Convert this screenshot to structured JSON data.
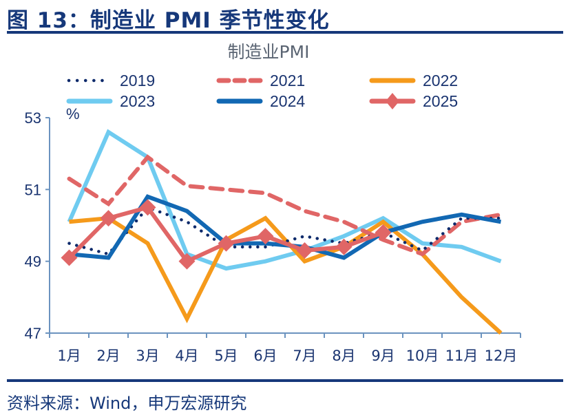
{
  "figure": {
    "title": "图 13：制造业 PMI 季节性变化",
    "source": "资料来源：Wind，申万宏源研究"
  },
  "chart_data": {
    "type": "line",
    "title": "制造业PMI",
    "ylabel": "%",
    "xlabel": "",
    "categories": [
      "1月",
      "2月",
      "3月",
      "4月",
      "5月",
      "6月",
      "7月",
      "8月",
      "9月",
      "10月",
      "11月",
      "12月"
    ],
    "ylim": [
      47,
      53
    ],
    "yticks": [
      47,
      49,
      51,
      53
    ],
    "grid": false,
    "legend_position": "top",
    "series": [
      {
        "name": "2019",
        "style": "dotted",
        "color": "#0d2a6b",
        "values": [
          49.5,
          49.2,
          50.5,
          50.1,
          49.4,
          49.4,
          49.7,
          49.5,
          49.8,
          49.3,
          50.2,
          50.2
        ]
      },
      {
        "name": "2021",
        "style": "dashed",
        "color": "#e06666",
        "values": [
          51.3,
          50.6,
          51.9,
          51.1,
          51.0,
          50.9,
          50.4,
          50.1,
          49.6,
          49.2,
          50.1,
          50.3
        ]
      },
      {
        "name": "2022",
        "style": "solid",
        "color": "#f59a1b",
        "values": [
          50.1,
          50.2,
          49.5,
          47.4,
          49.6,
          50.2,
          49.0,
          49.4,
          50.1,
          49.2,
          48.0,
          47.0
        ]
      },
      {
        "name": "2023",
        "style": "solid",
        "color": "#6fcbf0",
        "values": [
          50.1,
          52.6,
          51.9,
          49.2,
          48.8,
          49.0,
          49.3,
          49.7,
          50.2,
          49.5,
          49.4,
          49.0
        ]
      },
      {
        "name": "2024",
        "style": "solid",
        "color": "#1268b3",
        "values": [
          49.2,
          49.1,
          50.8,
          50.4,
          49.5,
          49.5,
          49.4,
          49.1,
          49.8,
          50.1,
          50.3,
          50.1
        ]
      },
      {
        "name": "2025",
        "style": "solid-diamond",
        "color": "#e06666",
        "values": [
          49.1,
          50.2,
          50.5,
          49.0,
          49.5,
          49.7,
          49.3,
          49.4,
          49.8,
          null,
          null,
          null
        ]
      }
    ]
  }
}
